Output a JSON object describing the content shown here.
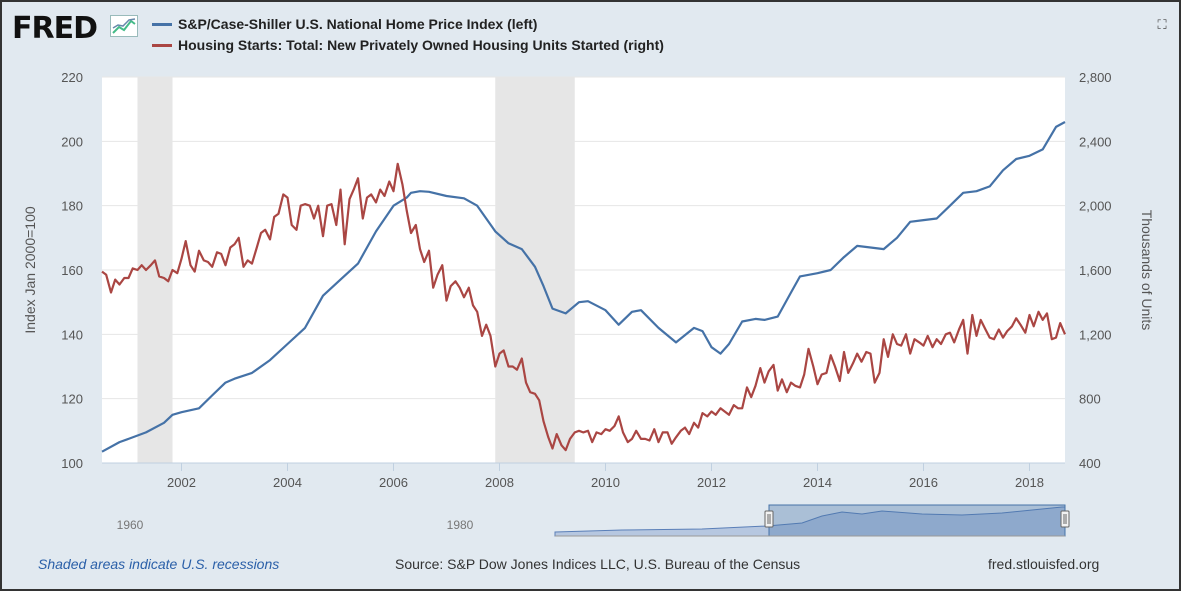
{
  "logo": {
    "text": "FRED"
  },
  "legend": [
    {
      "label": "S&P/Case-Shiller U.S. National Home Price Index (left)",
      "color": "#4572a7"
    },
    {
      "label": "Housing Starts: Total: New Privately Owned Housing Units Started (right)",
      "color": "#aa4643"
    }
  ],
  "footer": {
    "recession_note": "Shaded areas indicate U.S. recessions",
    "source": "Source: S&P Dow Jones Indices LLC, U.S. Bureau of the Census",
    "site": "fred.stlouisfed.org"
  },
  "navigator": {
    "labels": [
      "1960",
      "1980"
    ]
  },
  "chart_data": {
    "type": "line",
    "y_left": {
      "label": "Index Jan 2000=100",
      "min": 100,
      "max": 220,
      "ticks": [
        "100",
        "120",
        "140",
        "160",
        "180",
        "200",
        "220"
      ]
    },
    "y_right": {
      "label": "Thousands of Units",
      "min": 400,
      "max": 2800,
      "ticks": [
        "400",
        "800",
        "1,200",
        "1,600",
        "2,000",
        "2,400",
        "2,800"
      ]
    },
    "x": {
      "min": 2000.5,
      "max": 2018.67,
      "ticks": [
        "2002",
        "2004",
        "2006",
        "2008",
        "2010",
        "2012",
        "2014",
        "2016",
        "2018"
      ]
    },
    "recessions": [
      [
        2001.17,
        2001.83
      ],
      [
        2007.92,
        2009.42
      ]
    ],
    "grid": true,
    "series": [
      {
        "name": "S&P/Case-Shiller U.S. National Home Price Index (left)",
        "axis": "left",
        "color": "#4572a7",
        "points": [
          [
            2000.5,
            103.5
          ],
          [
            2000.83,
            106.5
          ],
          [
            2001,
            107.5
          ],
          [
            2001.33,
            109.5
          ],
          [
            2001.67,
            112.5
          ],
          [
            2001.83,
            115
          ],
          [
            2002,
            115.8
          ],
          [
            2002.33,
            117
          ],
          [
            2002.58,
            121
          ],
          [
            2002.83,
            125
          ],
          [
            2003,
            126.2
          ],
          [
            2003.33,
            128
          ],
          [
            2003.67,
            132
          ],
          [
            2004,
            137
          ],
          [
            2004.33,
            142
          ],
          [
            2004.67,
            152
          ],
          [
            2005,
            157
          ],
          [
            2005.33,
            162
          ],
          [
            2005.67,
            172
          ],
          [
            2006,
            180
          ],
          [
            2006.25,
            182.5
          ],
          [
            2006.33,
            184
          ],
          [
            2006.5,
            184.5
          ],
          [
            2006.67,
            184.3
          ],
          [
            2007,
            183
          ],
          [
            2007.33,
            182.3
          ],
          [
            2007.58,
            180
          ],
          [
            2007.92,
            172
          ],
          [
            2008.17,
            168.3
          ],
          [
            2008.42,
            166.5
          ],
          [
            2008.67,
            161
          ],
          [
            2008.83,
            155
          ],
          [
            2009,
            148
          ],
          [
            2009.25,
            146.5
          ],
          [
            2009.5,
            150
          ],
          [
            2009.67,
            150.3
          ],
          [
            2010,
            147.5
          ],
          [
            2010.25,
            143
          ],
          [
            2010.5,
            147
          ],
          [
            2010.67,
            147.5
          ],
          [
            2011,
            142
          ],
          [
            2011.33,
            137.5
          ],
          [
            2011.67,
            142
          ],
          [
            2011.83,
            141
          ],
          [
            2012,
            136
          ],
          [
            2012.17,
            134
          ],
          [
            2012.33,
            137
          ],
          [
            2012.58,
            144
          ],
          [
            2012.83,
            144.8
          ],
          [
            2013,
            144.5
          ],
          [
            2013.25,
            145.5
          ],
          [
            2013.5,
            153
          ],
          [
            2013.67,
            158
          ],
          [
            2014,
            159
          ],
          [
            2014.25,
            160
          ],
          [
            2014.5,
            164
          ],
          [
            2014.75,
            167.5
          ],
          [
            2015,
            167
          ],
          [
            2015.25,
            166.5
          ],
          [
            2015.5,
            170
          ],
          [
            2015.75,
            175
          ],
          [
            2016,
            175.5
          ],
          [
            2016.25,
            176
          ],
          [
            2016.5,
            180
          ],
          [
            2016.75,
            184
          ],
          [
            2017,
            184.5
          ],
          [
            2017.25,
            186
          ],
          [
            2017.5,
            191
          ],
          [
            2017.75,
            194.5
          ],
          [
            2018,
            195.5
          ],
          [
            2018.25,
            197.5
          ],
          [
            2018.5,
            204.5
          ],
          [
            2018.67,
            206
          ]
        ]
      },
      {
        "name": "Housing Starts: Total: New Privately Owned Housing Units Started (right)",
        "axis": "right",
        "color": "#aa4643",
        "points": [
          [
            2000.5,
            1590
          ],
          [
            2000.58,
            1570
          ],
          [
            2000.67,
            1460
          ],
          [
            2000.75,
            1540
          ],
          [
            2000.83,
            1510
          ],
          [
            2000.92,
            1550
          ],
          [
            2001,
            1550
          ],
          [
            2001.08,
            1610
          ],
          [
            2001.17,
            1600
          ],
          [
            2001.25,
            1630
          ],
          [
            2001.33,
            1600
          ],
          [
            2001.42,
            1630
          ],
          [
            2001.5,
            1660
          ],
          [
            2001.58,
            1560
          ],
          [
            2001.67,
            1550
          ],
          [
            2001.75,
            1530
          ],
          [
            2001.83,
            1600
          ],
          [
            2001.92,
            1580
          ],
          [
            2002,
            1670
          ],
          [
            2002.08,
            1780
          ],
          [
            2002.17,
            1630
          ],
          [
            2002.25,
            1590
          ],
          [
            2002.33,
            1720
          ],
          [
            2002.42,
            1660
          ],
          [
            2002.5,
            1650
          ],
          [
            2002.58,
            1620
          ],
          [
            2002.67,
            1710
          ],
          [
            2002.75,
            1700
          ],
          [
            2002.83,
            1630
          ],
          [
            2002.92,
            1740
          ],
          [
            2003,
            1760
          ],
          [
            2003.08,
            1800
          ],
          [
            2003.17,
            1620
          ],
          [
            2003.25,
            1660
          ],
          [
            2003.33,
            1640
          ],
          [
            2003.42,
            1740
          ],
          [
            2003.5,
            1830
          ],
          [
            2003.58,
            1850
          ],
          [
            2003.67,
            1790
          ],
          [
            2003.75,
            1930
          ],
          [
            2003.83,
            1950
          ],
          [
            2003.92,
            2070
          ],
          [
            2004,
            2050
          ],
          [
            2004.08,
            1880
          ],
          [
            2004.17,
            1850
          ],
          [
            2004.25,
            2000
          ],
          [
            2004.33,
            2010
          ],
          [
            2004.42,
            2000
          ],
          [
            2004.5,
            1920
          ],
          [
            2004.58,
            2000
          ],
          [
            2004.67,
            1810
          ],
          [
            2004.75,
            2000
          ],
          [
            2004.83,
            2010
          ],
          [
            2004.92,
            1880
          ],
          [
            2005,
            2100
          ],
          [
            2005.08,
            1760
          ],
          [
            2005.17,
            2040
          ],
          [
            2005.25,
            2100
          ],
          [
            2005.33,
            2170
          ],
          [
            2005.42,
            1920
          ],
          [
            2005.5,
            2050
          ],
          [
            2005.58,
            2070
          ],
          [
            2005.67,
            2020
          ],
          [
            2005.75,
            2100
          ],
          [
            2005.83,
            2060
          ],
          [
            2005.92,
            2150
          ],
          [
            2006,
            2090
          ],
          [
            2006.08,
            2260
          ],
          [
            2006.17,
            2130
          ],
          [
            2006.25,
            1970
          ],
          [
            2006.33,
            1830
          ],
          [
            2006.42,
            1880
          ],
          [
            2006.5,
            1730
          ],
          [
            2006.58,
            1650
          ],
          [
            2006.67,
            1720
          ],
          [
            2006.75,
            1490
          ],
          [
            2006.83,
            1570
          ],
          [
            2006.92,
            1630
          ],
          [
            2007,
            1410
          ],
          [
            2007.08,
            1500
          ],
          [
            2007.17,
            1530
          ],
          [
            2007.25,
            1490
          ],
          [
            2007.33,
            1430
          ],
          [
            2007.42,
            1490
          ],
          [
            2007.5,
            1380
          ],
          [
            2007.58,
            1340
          ],
          [
            2007.67,
            1190
          ],
          [
            2007.75,
            1260
          ],
          [
            2007.83,
            1190
          ],
          [
            2007.92,
            1000
          ],
          [
            2008,
            1080
          ],
          [
            2008.08,
            1100
          ],
          [
            2008.17,
            1000
          ],
          [
            2008.25,
            1000
          ],
          [
            2008.33,
            980
          ],
          [
            2008.42,
            1050
          ],
          [
            2008.5,
            900
          ],
          [
            2008.58,
            840
          ],
          [
            2008.67,
            830
          ],
          [
            2008.75,
            790
          ],
          [
            2008.83,
            660
          ],
          [
            2008.92,
            560
          ],
          [
            2009,
            490
          ],
          [
            2009.08,
            580
          ],
          [
            2009.17,
            510
          ],
          [
            2009.25,
            480
          ],
          [
            2009.33,
            550
          ],
          [
            2009.42,
            590
          ],
          [
            2009.5,
            600
          ],
          [
            2009.58,
            590
          ],
          [
            2009.67,
            600
          ],
          [
            2009.75,
            530
          ],
          [
            2009.83,
            590
          ],
          [
            2009.92,
            580
          ],
          [
            2010,
            610
          ],
          [
            2010.08,
            600
          ],
          [
            2010.17,
            630
          ],
          [
            2010.25,
            690
          ],
          [
            2010.33,
            590
          ],
          [
            2010.42,
            530
          ],
          [
            2010.5,
            550
          ],
          [
            2010.58,
            600
          ],
          [
            2010.67,
            550
          ],
          [
            2010.75,
            550
          ],
          [
            2010.83,
            540
          ],
          [
            2010.92,
            610
          ],
          [
            2011,
            530
          ],
          [
            2011.08,
            590
          ],
          [
            2011.17,
            590
          ],
          [
            2011.25,
            520
          ],
          [
            2011.33,
            560
          ],
          [
            2011.42,
            600
          ],
          [
            2011.5,
            620
          ],
          [
            2011.58,
            580
          ],
          [
            2011.67,
            650
          ],
          [
            2011.75,
            620
          ],
          [
            2011.83,
            710
          ],
          [
            2011.92,
            690
          ],
          [
            2012,
            720
          ],
          [
            2012.08,
            700
          ],
          [
            2012.17,
            740
          ],
          [
            2012.25,
            720
          ],
          [
            2012.33,
            700
          ],
          [
            2012.42,
            760
          ],
          [
            2012.5,
            740
          ],
          [
            2012.58,
            740
          ],
          [
            2012.67,
            870
          ],
          [
            2012.75,
            810
          ],
          [
            2012.83,
            880
          ],
          [
            2012.92,
            990
          ],
          [
            2013,
            900
          ],
          [
            2013.08,
            970
          ],
          [
            2013.17,
            1010
          ],
          [
            2013.25,
            850
          ],
          [
            2013.33,
            920
          ],
          [
            2013.42,
            840
          ],
          [
            2013.5,
            900
          ],
          [
            2013.58,
            880
          ],
          [
            2013.67,
            870
          ],
          [
            2013.75,
            950
          ],
          [
            2013.83,
            1110
          ],
          [
            2013.92,
            1000
          ],
          [
            2014,
            890
          ],
          [
            2014.08,
            950
          ],
          [
            2014.17,
            960
          ],
          [
            2014.25,
            1070
          ],
          [
            2014.33,
            1000
          ],
          [
            2014.42,
            910
          ],
          [
            2014.5,
            1090
          ],
          [
            2014.58,
            960
          ],
          [
            2014.67,
            1020
          ],
          [
            2014.75,
            1080
          ],
          [
            2014.83,
            1030
          ],
          [
            2014.92,
            1090
          ],
          [
            2015,
            1080
          ],
          [
            2015.08,
            900
          ],
          [
            2015.17,
            960
          ],
          [
            2015.25,
            1170
          ],
          [
            2015.33,
            1060
          ],
          [
            2015.42,
            1200
          ],
          [
            2015.5,
            1140
          ],
          [
            2015.58,
            1130
          ],
          [
            2015.67,
            1200
          ],
          [
            2015.75,
            1080
          ],
          [
            2015.83,
            1170
          ],
          [
            2015.92,
            1150
          ],
          [
            2016,
            1130
          ],
          [
            2016.08,
            1190
          ],
          [
            2016.17,
            1120
          ],
          [
            2016.25,
            1170
          ],
          [
            2016.33,
            1140
          ],
          [
            2016.42,
            1200
          ],
          [
            2016.5,
            1210
          ],
          [
            2016.58,
            1150
          ],
          [
            2016.67,
            1230
          ],
          [
            2016.75,
            1290
          ],
          [
            2016.83,
            1080
          ],
          [
            2016.92,
            1320
          ],
          [
            2017,
            1190
          ],
          [
            2017.08,
            1290
          ],
          [
            2017.17,
            1230
          ],
          [
            2017.25,
            1180
          ],
          [
            2017.33,
            1170
          ],
          [
            2017.42,
            1230
          ],
          [
            2017.5,
            1180
          ],
          [
            2017.58,
            1220
          ],
          [
            2017.67,
            1250
          ],
          [
            2017.75,
            1300
          ],
          [
            2017.83,
            1260
          ],
          [
            2017.92,
            1210
          ],
          [
            2018,
            1320
          ],
          [
            2018.08,
            1250
          ],
          [
            2018.17,
            1340
          ],
          [
            2018.25,
            1290
          ],
          [
            2018.33,
            1330
          ],
          [
            2018.42,
            1170
          ],
          [
            2018.5,
            1180
          ],
          [
            2018.58,
            1270
          ],
          [
            2018.67,
            1200
          ]
        ]
      }
    ]
  }
}
